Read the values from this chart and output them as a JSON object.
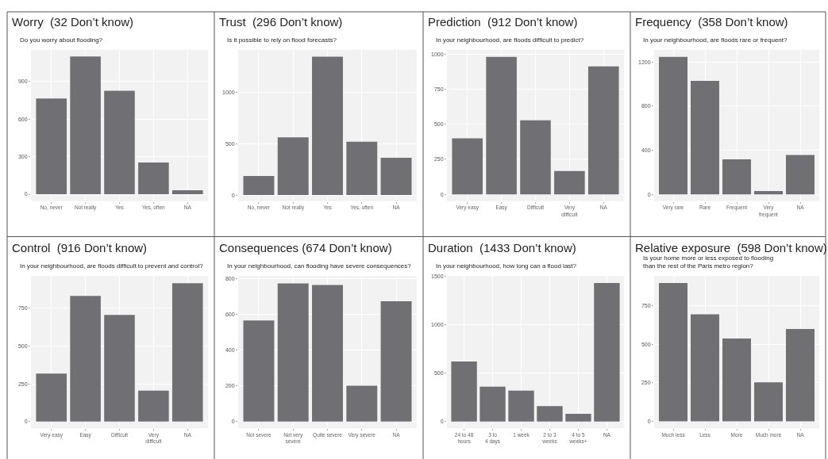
{
  "chart_data": [
    {
      "type": "bar",
      "title": "Worry  (32 Don’t know)",
      "subtitle": "Do you worry about flooding?",
      "categories": [
        "No, never",
        "Not really",
        "Yes",
        "Yes, often",
        "NA"
      ],
      "values": [
        765,
        1100,
        827,
        253,
        32
      ],
      "color": "#707074",
      "ylim": [
        -55,
        1155
      ],
      "yticks": [
        0,
        300,
        600,
        900
      ],
      "grid": true
    },
    {
      "type": "bar",
      "title": "Trust  (296 Don’t know)",
      "subtitle": "Is it possible to rely on flood forecasts?",
      "categories": [
        "No, never",
        "Not really",
        "Yes",
        "Yes, often",
        "NA"
      ],
      "values": [
        187,
        564,
        1349,
        521,
        364
      ],
      "color": "#707074",
      "ylim": [
        -59,
        1418
      ],
      "yticks": [
        0,
        500,
        1000
      ],
      "grid": true
    },
    {
      "type": "bar",
      "title": "Prediction  (912 Don’t know)",
      "subtitle": "In your neighbourhood, are floods difficult to predict?",
      "categories": [
        "Very easy",
        "Easy",
        "Difficult",
        "Very difficult",
        "NA"
      ],
      "values": [
        399,
        980,
        528,
        167,
        912
      ],
      "color": "#707074",
      "ylim": [
        -48,
        1031
      ],
      "yticks": [
        0,
        250,
        500,
        750,
        1000
      ],
      "grid": true
    },
    {
      "type": "bar",
      "title": "Frequency  (358 Don’t know)",
      "subtitle": "In your neighbourhood, are floods rare or frequent?",
      "categories": [
        "Very rare",
        "Rare",
        "Frequent",
        "Very frequent",
        "NA"
      ],
      "values": [
        1247,
        1029,
        318,
        30,
        358
      ],
      "color": "#707074",
      "ylim": [
        -61,
        1312
      ],
      "yticks": [
        0,
        400,
        800,
        1200
      ],
      "grid": true
    },
    {
      "type": "bar",
      "title": "Control  (916 Don’t know)",
      "subtitle": "In your neighbourhood, are floods difficult to prevent and control?",
      "categories": [
        "Very easy",
        "Easy",
        "Difficult",
        "Very difficult",
        "NA"
      ],
      "values": [
        317,
        833,
        706,
        205,
        916
      ],
      "color": "#707074",
      "ylim": [
        -45,
        964
      ],
      "yticks": [
        0,
        250,
        500,
        750
      ],
      "grid": true
    },
    {
      "type": "bar",
      "title": "Consequences (674 Don’t know)",
      "subtitle": "In your neighbourhood, can flooding have severe consequences?",
      "categories": [
        "Not severe",
        "Not very severe",
        "Quite severe",
        "Very severe",
        "NA"
      ],
      "values": [
        566,
        774,
        765,
        201,
        674
      ],
      "color": "#707074",
      "ylim": [
        -38,
        815
      ],
      "yticks": [
        0,
        200,
        400,
        600,
        800
      ],
      "grid": true
    },
    {
      "type": "bar",
      "title": "Duration  (1433 Don’t know)",
      "subtitle": "In your neighbourhood, how long can a flood last?",
      "categories": [
        "24 to 48 hours",
        "3 to 4 days",
        "1 week",
        "2 to 3 weeks",
        "4 to 5 weeks+",
        "NA"
      ],
      "values": [
        620,
        360,
        320,
        160,
        80,
        1433
      ],
      "color": "#707074",
      "ylim": [
        -70,
        1505
      ],
      "yticks": [
        0,
        500,
        1000,
        1500
      ],
      "grid": true
    },
    {
      "type": "bar",
      "title": "Relative exposure  (598 Don’t know)",
      "subtitle": "Is your home more or less exposed to flooding than the rest of the Paris metro region?",
      "categories": [
        "Much less",
        "Less",
        "More",
        "Much more",
        "NA"
      ],
      "values": [
        896,
        693,
        537,
        253,
        598
      ],
      "color": "#707074",
      "ylim": [
        -44,
        941
      ],
      "yticks": [
        0,
        250,
        500,
        750
      ],
      "grid": true
    }
  ]
}
